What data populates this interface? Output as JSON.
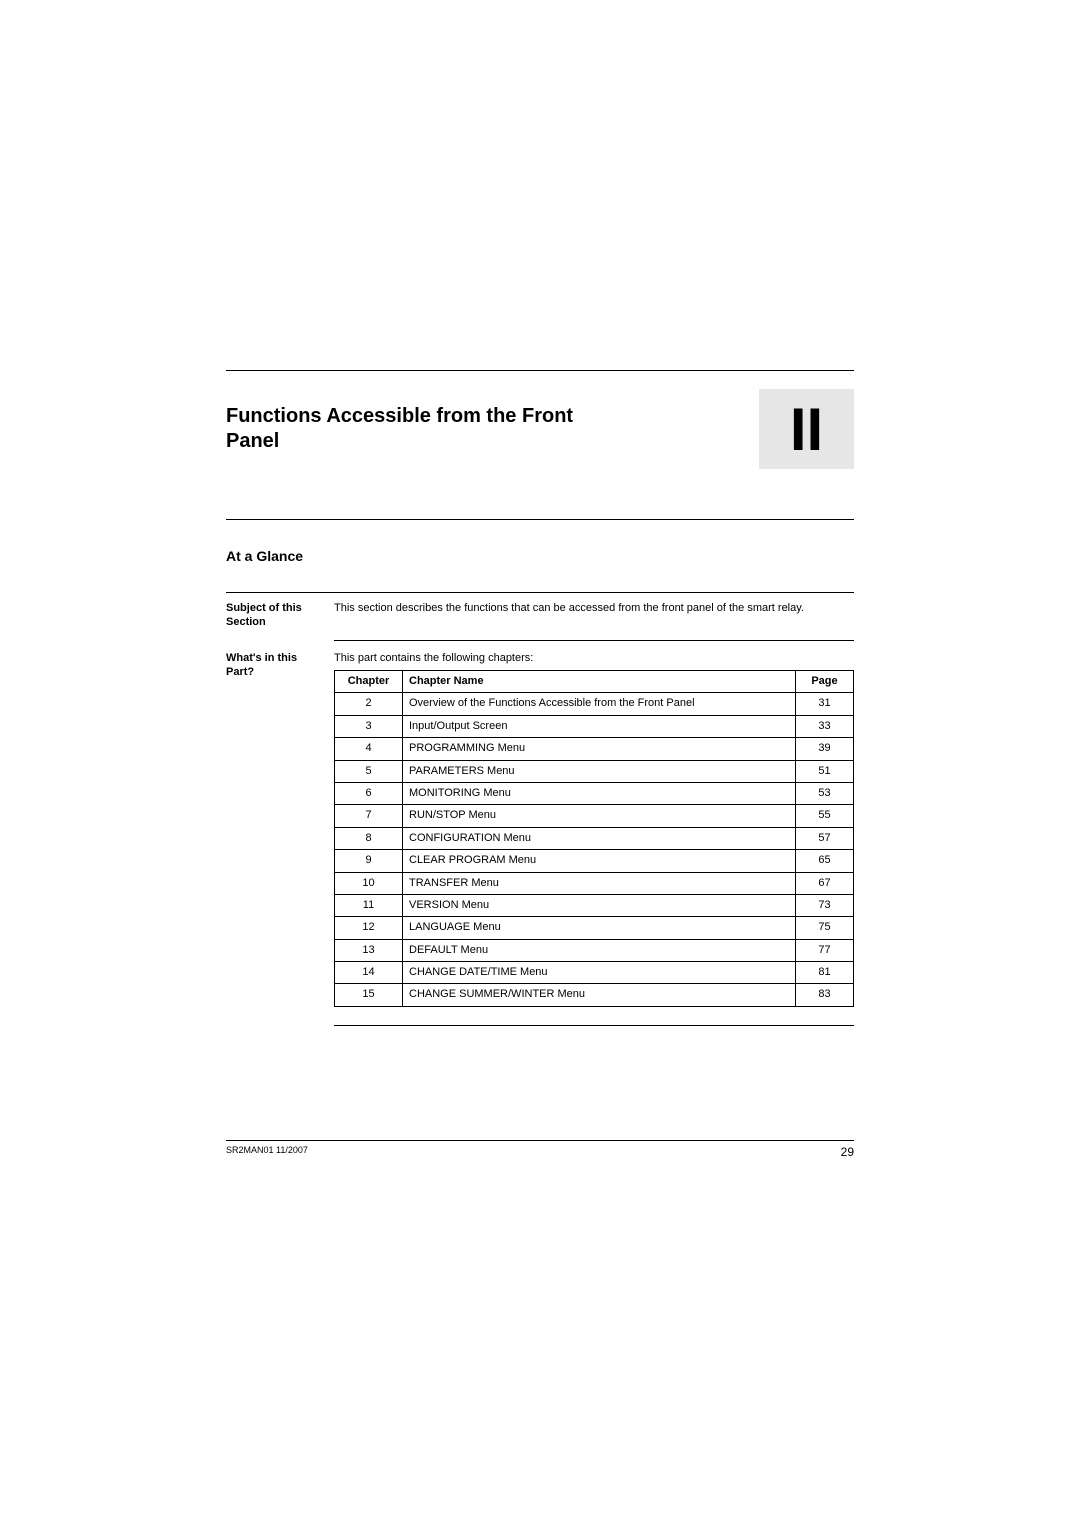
{
  "title": "Functions Accessible from the Front Panel",
  "part_number": "II",
  "glance_heading": "At a Glance",
  "subject": {
    "label": "Subject of this Section",
    "text": "This section describes the functions that can be accessed from the front panel of the smart relay."
  },
  "whats_in": {
    "label": "What's in this Part?",
    "intro": "This part contains the following chapters:",
    "headers": {
      "chapter": "Chapter",
      "name": "Chapter Name",
      "page": "Page"
    },
    "rows": [
      {
        "ch": "2",
        "name": "Overview of the Functions Accessible from the Front Panel",
        "pg": "31"
      },
      {
        "ch": "3",
        "name": "Input/Output Screen",
        "pg": "33"
      },
      {
        "ch": "4",
        "name": "PROGRAMMING Menu",
        "pg": "39"
      },
      {
        "ch": "5",
        "name": "PARAMETERS Menu",
        "pg": "51"
      },
      {
        "ch": "6",
        "name": "MONITORING Menu",
        "pg": "53"
      },
      {
        "ch": "7",
        "name": "RUN/STOP Menu",
        "pg": "55"
      },
      {
        "ch": "8",
        "name": "CONFIGURATION Menu",
        "pg": "57"
      },
      {
        "ch": "9",
        "name": "CLEAR PROGRAM Menu",
        "pg": "65"
      },
      {
        "ch": "10",
        "name": "TRANSFER Menu",
        "pg": "67"
      },
      {
        "ch": "11",
        "name": "VERSION Menu",
        "pg": "73"
      },
      {
        "ch": "12",
        "name": "LANGUAGE Menu",
        "pg": "75"
      },
      {
        "ch": "13",
        "name": "DEFAULT Menu",
        "pg": "77"
      },
      {
        "ch": "14",
        "name": "CHANGE DATE/TIME Menu",
        "pg": "81"
      },
      {
        "ch": "15",
        "name": "CHANGE SUMMER/WINTER Menu",
        "pg": "83"
      }
    ]
  },
  "footer": {
    "doc_id": "SR2MAN01 11/2007",
    "page_number": "29"
  }
}
